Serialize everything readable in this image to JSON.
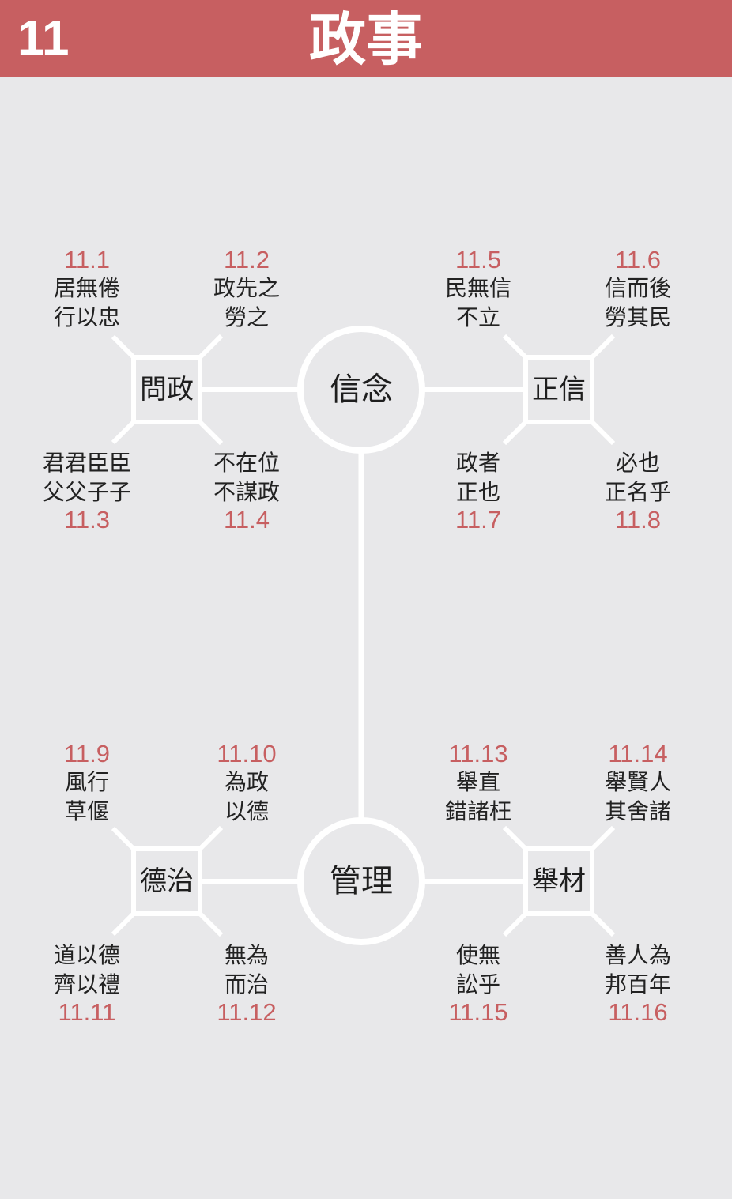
{
  "header": {
    "number": "11",
    "title": "政事"
  },
  "colors": {
    "header_bg": "#c75f61",
    "accent_red": "#c75f61",
    "line": "#ffffff",
    "background": "#e8e8ea"
  },
  "hubs": [
    {
      "label": "信念"
    },
    {
      "label": "管理"
    }
  ],
  "subs": [
    {
      "label": "問政"
    },
    {
      "label": "正信"
    },
    {
      "label": "德治"
    },
    {
      "label": "舉材"
    }
  ],
  "leaves": [
    {
      "num": "11.1",
      "line1": "居無倦",
      "line2": "行以忠"
    },
    {
      "num": "11.2",
      "line1": "政先之",
      "line2": "勞之"
    },
    {
      "num": "11.3",
      "line1": "君君臣臣",
      "line2": "父父子子"
    },
    {
      "num": "11.4",
      "line1": "不在位",
      "line2": "不謀政"
    },
    {
      "num": "11.5",
      "line1": "民無信",
      "line2": "不立"
    },
    {
      "num": "11.6",
      "line1": "信而後",
      "line2": "勞其民"
    },
    {
      "num": "11.7",
      "line1": "政者",
      "line2": "正也"
    },
    {
      "num": "11.8",
      "line1": "必也",
      "line2": "正名乎"
    },
    {
      "num": "11.9",
      "line1": "風行",
      "line2": "草偃"
    },
    {
      "num": "11.10",
      "line1": "為政",
      "line2": "以德"
    },
    {
      "num": "11.11",
      "line1": "道以德",
      "line2": "齊以禮"
    },
    {
      "num": "11.12",
      "line1": "無為",
      "line2": "而治"
    },
    {
      "num": "11.13",
      "line1": "舉直",
      "line2": "錯諸枉"
    },
    {
      "num": "11.14",
      "line1": "舉賢人",
      "line2": "其舍諸"
    },
    {
      "num": "11.15",
      "line1": "使無",
      "line2": "訟乎"
    },
    {
      "num": "11.16",
      "line1": "善人為",
      "line2": "邦百年"
    }
  ]
}
